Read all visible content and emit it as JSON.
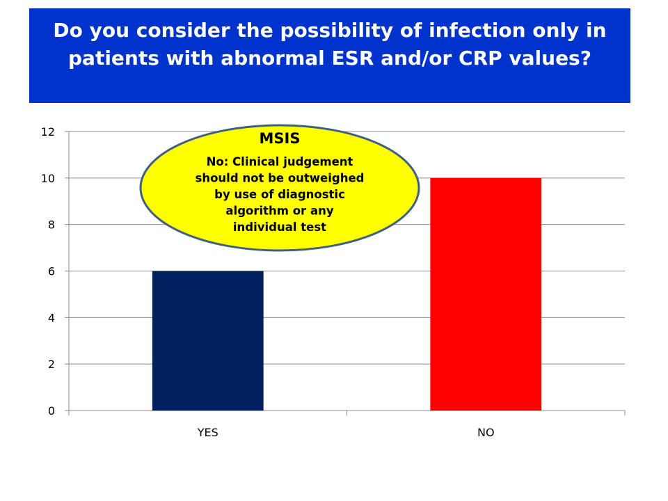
{
  "slide": {
    "title": "Do you consider the possibility of infection only in patients with abnormal ESR and/or CRP values?"
  },
  "chart_data": {
    "type": "bar",
    "categories": [
      "YES",
      "NO"
    ],
    "values": [
      6,
      10
    ],
    "colors": [
      "#002060",
      "#ff0000"
    ],
    "ylim": [
      0,
      12
    ],
    "yticks": [
      0,
      2,
      4,
      6,
      8,
      10,
      12
    ],
    "grid": true,
    "legend": "none"
  },
  "callout": {
    "title": "MSIS",
    "lines": [
      "No: Clinical judgement",
      "should not be outweighed",
      "by use of diagnostic",
      "algorithm or any",
      "individual test"
    ],
    "fill": "#ffff00",
    "border": "#3f6080"
  }
}
